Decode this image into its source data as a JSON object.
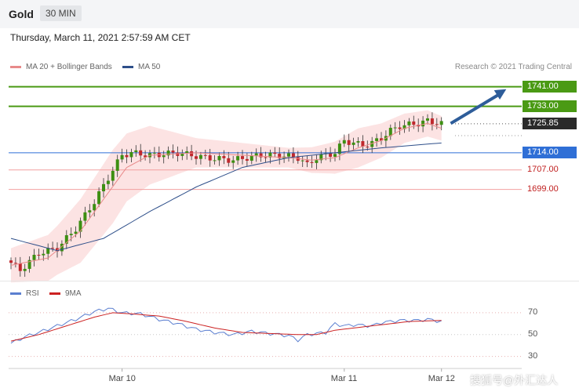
{
  "header": {
    "symbol": "Gold",
    "timeframe": "30 MIN"
  },
  "timestamp": "Thursday, March 11, 2021 2:57:59 AM CET",
  "legend": {
    "items": [
      {
        "label": "MA 20 + Bollinger Bands",
        "color": "#e88a8a"
      },
      {
        "label": "MA 50",
        "color": "#2e4f8a"
      }
    ]
  },
  "credit": "Research © 2021 Trading Central",
  "rsi_legend": {
    "items": [
      {
        "label": "RSI",
        "color": "#5b7fd0"
      },
      {
        "label": "9MA",
        "color": "#cc2222"
      }
    ]
  },
  "watermark": "搜狐号@外汇达人",
  "chart_data": [
    {
      "type": "candlestick",
      "ylim": [
        1663,
        1746
      ],
      "x_labels": [
        {
          "label": "Mar 10",
          "index": 24
        },
        {
          "label": "Mar 11",
          "index": 72
        },
        {
          "label": "Mar 12",
          "index": 93
        }
      ],
      "current_price": 1725.85,
      "levels": [
        {
          "value": 1741.0,
          "label": "1741.00",
          "style": "green"
        },
        {
          "value": 1733.0,
          "label": "1733.00",
          "style": "green"
        },
        {
          "value": 1725.85,
          "label": "1725.85",
          "style": "dark"
        },
        {
          "value": 1714.0,
          "label": "1714.00",
          "style": "blue"
        },
        {
          "value": 1707.0,
          "label": "1707.00",
          "style": "red"
        },
        {
          "value": 1699.0,
          "label": "1699.00",
          "style": "red"
        }
      ],
      "projection": {
        "from_index": 95,
        "from": 1726,
        "to_index": 107,
        "to": 1740
      },
      "ma50_anchors": [
        [
          0,
          1679
        ],
        [
          10,
          1674
        ],
        [
          20,
          1679
        ],
        [
          30,
          1690
        ],
        [
          40,
          1700
        ],
        [
          50,
          1708
        ],
        [
          60,
          1712
        ],
        [
          70,
          1714
        ],
        [
          80,
          1716
        ],
        [
          93,
          1718
        ]
      ],
      "ma20_anchors": [
        [
          0,
          1668
        ],
        [
          8,
          1671
        ],
        [
          15,
          1682
        ],
        [
          20,
          1695
        ],
        [
          25,
          1708
        ],
        [
          30,
          1713
        ],
        [
          40,
          1714
        ],
        [
          50,
          1713
        ],
        [
          60,
          1712
        ],
        [
          65,
          1711
        ],
        [
          70,
          1712
        ],
        [
          75,
          1716
        ],
        [
          80,
          1719
        ],
        [
          85,
          1724
        ],
        [
          90,
          1726
        ],
        [
          93,
          1724
        ]
      ],
      "bb_width_anchors": [
        [
          0,
          7
        ],
        [
          10,
          10
        ],
        [
          15,
          13
        ],
        [
          22,
          15
        ],
        [
          30,
          12
        ],
        [
          40,
          6
        ],
        [
          50,
          5
        ],
        [
          60,
          4
        ],
        [
          68,
          6
        ],
        [
          75,
          8
        ],
        [
          85,
          6
        ],
        [
          93,
          5
        ]
      ],
      "close_anchors": [
        [
          0,
          1669
        ],
        [
          2,
          1666
        ],
        [
          6,
          1673
        ],
        [
          10,
          1675
        ],
        [
          14,
          1683
        ],
        [
          18,
          1694
        ],
        [
          22,
          1707
        ],
        [
          24,
          1713
        ],
        [
          26,
          1714
        ],
        [
          30,
          1713
        ],
        [
          36,
          1714
        ],
        [
          42,
          1712
        ],
        [
          48,
          1711
        ],
        [
          54,
          1713
        ],
        [
          58,
          1713
        ],
        [
          62,
          1712
        ],
        [
          64,
          1709
        ],
        [
          66,
          1712
        ],
        [
          70,
          1714
        ],
        [
          72,
          1719
        ],
        [
          74,
          1718
        ],
        [
          76,
          1717
        ],
        [
          78,
          1718
        ],
        [
          80,
          1720
        ],
        [
          82,
          1723
        ],
        [
          84,
          1725
        ],
        [
          88,
          1726
        ],
        [
          90,
          1727
        ],
        [
          93,
          1725.85
        ]
      ]
    },
    {
      "type": "line",
      "title": "RSI",
      "ylim": [
        24,
        80
      ],
      "y_ticks": [
        70,
        50,
        30
      ],
      "series": [
        {
          "name": "RSI",
          "anchors": [
            [
              0,
              42
            ],
            [
              3,
              48
            ],
            [
              6,
              52
            ],
            [
              10,
              58
            ],
            [
              14,
              64
            ],
            [
              18,
              71
            ],
            [
              21,
              74
            ],
            [
              24,
              70
            ],
            [
              28,
              69
            ],
            [
              32,
              64
            ],
            [
              36,
              60
            ],
            [
              40,
              55
            ],
            [
              44,
              52
            ],
            [
              48,
              50
            ],
            [
              52,
              53
            ],
            [
              56,
              51
            ],
            [
              60,
              49
            ],
            [
              62,
              45
            ],
            [
              64,
              50
            ],
            [
              68,
              52
            ],
            [
              70,
              60
            ],
            [
              72,
              58
            ],
            [
              74,
              59
            ],
            [
              78,
              58
            ],
            [
              80,
              61
            ],
            [
              84,
              63
            ],
            [
              88,
              63
            ],
            [
              90,
              64
            ],
            [
              93,
              62
            ]
          ]
        },
        {
          "name": "9MA",
          "anchors": [
            [
              0,
              44
            ],
            [
              6,
              50
            ],
            [
              12,
              58
            ],
            [
              18,
              66
            ],
            [
              22,
              70
            ],
            [
              26,
              69
            ],
            [
              32,
              67
            ],
            [
              38,
              62
            ],
            [
              44,
              56
            ],
            [
              50,
              52
            ],
            [
              56,
              51
            ],
            [
              62,
              50
            ],
            [
              66,
              50
            ],
            [
              70,
              54
            ],
            [
              74,
              56
            ],
            [
              80,
              59
            ],
            [
              86,
              62
            ],
            [
              93,
              63
            ]
          ]
        }
      ]
    }
  ]
}
